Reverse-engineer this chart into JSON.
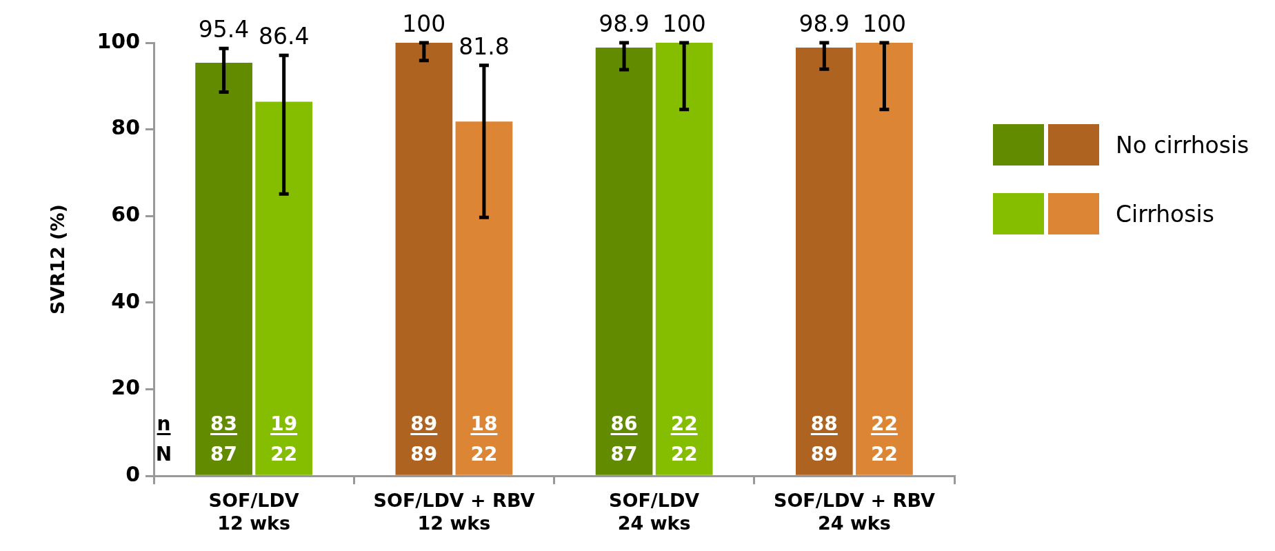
{
  "chart_data": {
    "type": "bar",
    "ylabel": "SVR12 (%)",
    "categories": [
      "SOF/LDV\n12 wks",
      "SOF/LDV + RBV\n12 wks",
      "SOF/LDV\n24 wks",
      "SOF/LDV + RBV\n24 wks"
    ],
    "series": [
      {
        "name": "No cirrhosis",
        "colors": [
          "#628b00",
          "#ae6320",
          "#628b00",
          "#ae6320"
        ],
        "values": [
          95.4,
          100,
          98.9,
          98.9
        ],
        "errors": [
          [
            88.6,
            98.7
          ],
          [
            95.9,
            100
          ],
          [
            93.8,
            100
          ],
          [
            93.9,
            100
          ]
        ]
      },
      {
        "name": "Cirrhosis",
        "colors": [
          "#85bd00",
          "#dc8535",
          "#85bd00",
          "#dc8535"
        ],
        "values": [
          86.4,
          81.8,
          100,
          100
        ],
        "errors": [
          [
            65.1,
            97.1
          ],
          [
            59.7,
            94.8
          ],
          [
            84.6,
            100
          ],
          [
            84.6,
            100
          ]
        ]
      }
    ],
    "ylim": [
      0,
      100
    ],
    "yticks": [
      0,
      20,
      40,
      60,
      80,
      100
    ],
    "data_labels": true,
    "legend": "right",
    "annotations": [
      "n",
      {
        "text": "83",
        "x": "SOF/LDV\n12 wks",
        "y": 12
      },
      {
        "text": "19",
        "x": "SOF/LDV\n12 wks",
        "y": 12
      },
      "N",
      {
        "text": "87",
        "x": "SOF/LDV\n12 wks",
        "y": 5
      },
      {
        "text": "22",
        "x": "SOF/LDV\n12 wks",
        "y": 5
      },
      {
        "text": "89",
        "x": "SOF/LDV + RBV\n12 wks",
        "y": 12
      },
      {
        "text": "18",
        "x": "SOF/LDV + RBV\n12 wks",
        "y": 12
      },
      {
        "text": "89",
        "x": "SOF/LDV + RBV\n12 wks",
        "y": 5
      },
      {
        "text": "22",
        "x": "SOF/LDV + RBV\n12 wks",
        "y": 5
      },
      {
        "text": "86",
        "x": "SOF/LDV\n24 wks",
        "y": 12
      },
      {
        "text": "22",
        "x": "SOF/LDV\n24 wks",
        "y": 12
      },
      {
        "text": "87",
        "x": "SOF/LDV\n24 wks",
        "y": 5
      },
      {
        "text": "22",
        "x": "SOF/LDV\n24 wks",
        "y": 5
      },
      {
        "text": "88",
        "x": "SOF/LDV + RBV\n24 wks",
        "y": 12
      },
      {
        "text": "22",
        "x": "SOF/LDV + RBV\n24 wks",
        "y": 12
      },
      {
        "text": "89",
        "x": "SOF/LDV + RBV\n24 wks",
        "y": 5
      },
      {
        "text": "22",
        "x": "SOF/LDV + RBV\n24 wks",
        "y": 5
      }
    ]
  }
}
